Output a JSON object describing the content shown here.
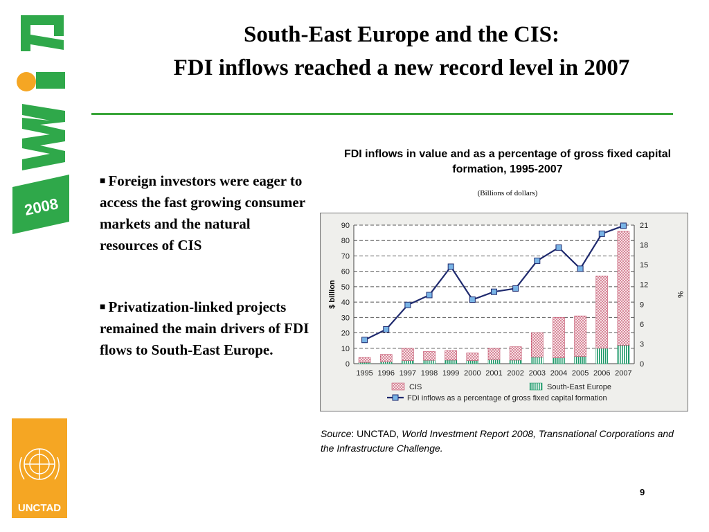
{
  "slide": {
    "title_line1": "South-East Europe and the CIS:",
    "title_line2": "FDI inflows reached a new record level in 2007",
    "bullets": [
      "Foreign investors were eager to access the fast growing consumer markets and the natural resources of CIS",
      "Privatization-linked projects remained the main drivers of FDI flows to South-East Europe."
    ],
    "source_label": "Source",
    "source_org": ": UNCTAD, ",
    "source_title": "World Investment Report 2008, Transnational Corporations and the Infrastructure Challenge.",
    "page_number": "9",
    "logo_wir_text": "WIR",
    "logo_year_text": "2008",
    "logo_unctad_text": "UNCTAD"
  },
  "colors": {
    "accent_green": "#3aa63a",
    "logo_green": "#2fa84a",
    "logo_orange": "#f5a623",
    "cis_fill": "#d9788e",
    "see_fill": "#1f9a6a",
    "line": "#1f2a6e",
    "marker": "#79b4e6"
  },
  "chart_data": {
    "type": "bar",
    "title": "FDI inflows in value and as a percentage of gross fixed capital formation, 1995-2007",
    "subtitle": "(Billions of dollars)",
    "ylabel": "$ billion",
    "y2label": "%",
    "ylim": [
      0,
      90
    ],
    "y2lim": [
      0,
      21
    ],
    "yticks": [
      "0",
      "10",
      "20",
      "30",
      "40",
      "50",
      "60",
      "70",
      "80",
      "90"
    ],
    "y2ticks": [
      "0",
      "3",
      "6",
      "9",
      "12",
      "15",
      "18",
      "21"
    ],
    "categories": [
      "1995",
      "1996",
      "1997",
      "1998",
      "1999",
      "2000",
      "2001",
      "2002",
      "2003",
      "2004",
      "2005",
      "2006",
      "2007"
    ],
    "stacked": true,
    "series": [
      {
        "name": "South-East Europe",
        "type": "bar",
        "values": [
          0.8,
          1.2,
          2.0,
          2.2,
          2.3,
          2.0,
          2.5,
          2.3,
          4.3,
          3.8,
          4.7,
          10.0,
          12.0
        ]
      },
      {
        "name": "CIS",
        "type": "bar",
        "values": [
          3.2,
          4.8,
          8.0,
          5.8,
          6.2,
          5.0,
          7.5,
          8.7,
          15.7,
          26.2,
          26.3,
          47.0,
          74.0
        ]
      },
      {
        "name": "FDI inflows as a percentage of gross fixed capital formation",
        "type": "line",
        "axis": "right",
        "values": [
          3.6,
          5.2,
          8.9,
          10.4,
          14.7,
          9.7,
          10.9,
          11.4,
          15.6,
          17.6,
          14.4,
          19.7,
          20.9
        ]
      }
    ],
    "grid": true,
    "legend": "bottom"
  }
}
